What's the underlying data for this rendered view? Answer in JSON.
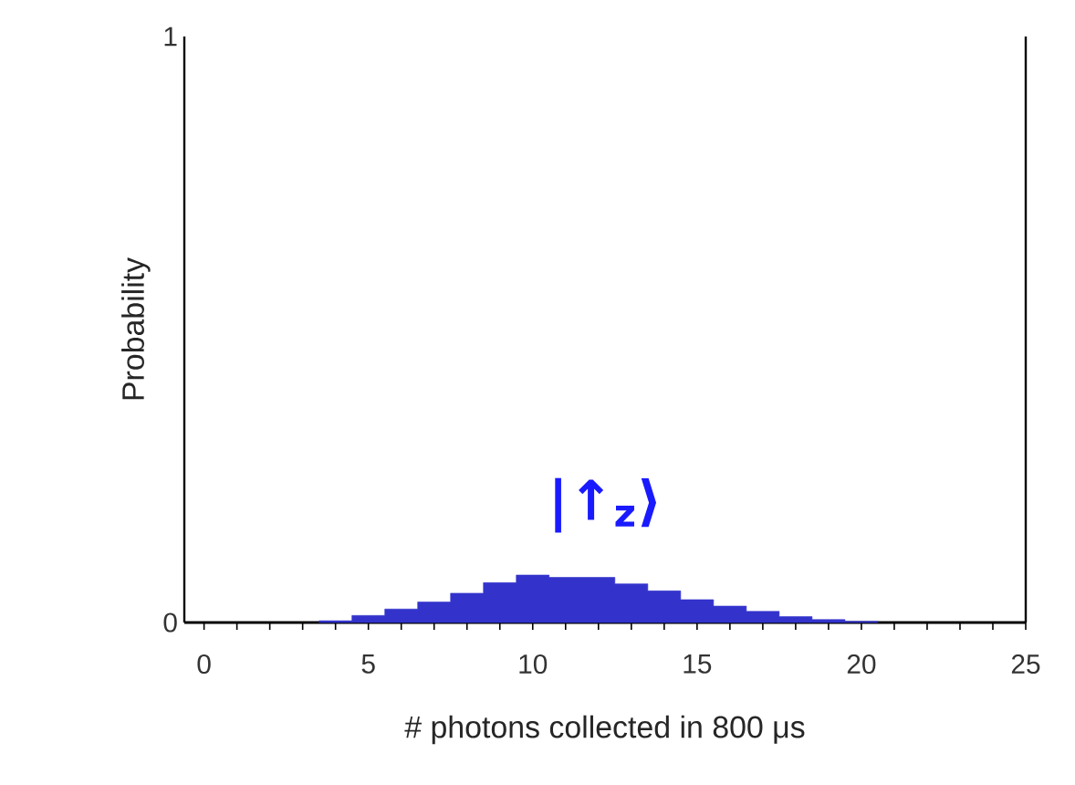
{
  "chart_data": {
    "type": "histogram",
    "xlabel": "# photons collected in 800 μs",
    "ylabel": "Probability",
    "bins": [
      3.5,
      4.5,
      5.5,
      6.5,
      7.5,
      8.5,
      9.5,
      10.5,
      11.5,
      12.5,
      13.5,
      14.5,
      15.5,
      16.5,
      17.5,
      18.5,
      19.5,
      20.5
    ],
    "values": [
      0.003,
      0.012,
      0.023,
      0.035,
      0.05,
      0.068,
      0.081,
      0.077,
      0.077,
      0.066,
      0.054,
      0.039,
      0.028,
      0.019,
      0.01,
      0.005,
      0.002
    ],
    "color": "#3333cc",
    "xlim": [
      -0.6,
      25
    ],
    "ylim": [
      0,
      1
    ],
    "xticks": [
      0,
      {
        "value": 1,
        "label": null
      },
      {
        "value": 2,
        "label": null
      },
      {
        "value": 3,
        "label": null
      },
      {
        "value": 4,
        "label": null
      },
      5,
      {
        "value": 6,
        "label": null
      },
      {
        "value": 7,
        "label": null
      },
      {
        "value": 8,
        "label": null
      },
      {
        "value": 9,
        "label": null
      },
      10,
      {
        "value": 11,
        "label": null
      },
      {
        "value": 12,
        "label": null
      },
      {
        "value": 13,
        "label": null
      },
      {
        "value": 14,
        "label": null
      },
      15,
      {
        "value": 16,
        "label": null
      },
      {
        "value": 17,
        "label": null
      },
      {
        "value": 18,
        "label": null
      },
      {
        "value": 19,
        "label": null
      },
      20,
      {
        "value": 21,
        "label": null
      },
      {
        "value": 22,
        "label": null
      },
      {
        "value": 23,
        "label": null
      },
      {
        "value": 24,
        "label": null
      },
      25
    ],
    "yticks": [
      0,
      1
    ],
    "annotations": [
      "|↑$_{z}$⟩"
    ]
  }
}
